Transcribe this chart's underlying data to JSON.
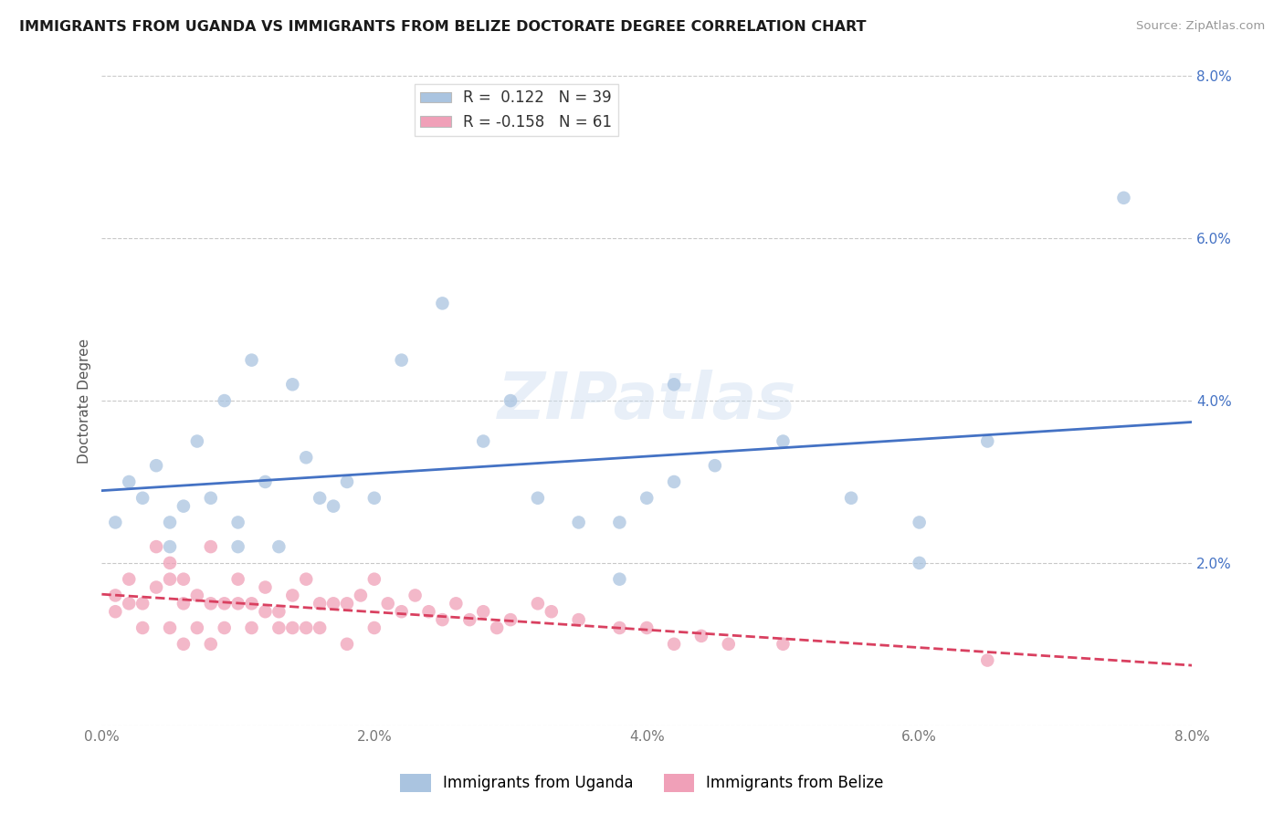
{
  "title": "IMMIGRANTS FROM UGANDA VS IMMIGRANTS FROM BELIZE DOCTORATE DEGREE CORRELATION CHART",
  "source": "Source: ZipAtlas.com",
  "ylabel_label": "Doctorate Degree",
  "legend_label1": "Immigrants from Uganda",
  "legend_label2": "Immigrants from Belize",
  "r1": 0.122,
  "n1": 39,
  "r2": -0.158,
  "n2": 61,
  "xlim": [
    0.0,
    0.08
  ],
  "ylim": [
    0.0,
    0.08
  ],
  "xtick_vals": [
    0.0,
    0.02,
    0.04,
    0.06,
    0.08
  ],
  "ytick_vals": [
    0.0,
    0.02,
    0.04,
    0.06,
    0.08
  ],
  "xtick_labels": [
    "0.0%",
    "2.0%",
    "4.0%",
    "6.0%",
    "8.0%"
  ],
  "ytick_labels": [
    "",
    "2.0%",
    "4.0%",
    "6.0%",
    "8.0%"
  ],
  "color_uganda": "#aac4e0",
  "color_belize": "#f0a0b8",
  "line_color_uganda": "#4472c4",
  "line_color_belize": "#d94060",
  "watermark_text": "ZIPatlas",
  "uganda_x": [
    0.001,
    0.002,
    0.003,
    0.004,
    0.005,
    0.005,
    0.006,
    0.007,
    0.008,
    0.009,
    0.01,
    0.01,
    0.011,
    0.012,
    0.013,
    0.014,
    0.015,
    0.016,
    0.017,
    0.018,
    0.02,
    0.022,
    0.025,
    0.028,
    0.03,
    0.032,
    0.035,
    0.038,
    0.04,
    0.042,
    0.045,
    0.05,
    0.055,
    0.06,
    0.065,
    0.038,
    0.042,
    0.06,
    0.075
  ],
  "uganda_y": [
    0.025,
    0.03,
    0.028,
    0.032,
    0.025,
    0.022,
    0.027,
    0.035,
    0.028,
    0.04,
    0.025,
    0.022,
    0.045,
    0.03,
    0.022,
    0.042,
    0.033,
    0.028,
    0.027,
    0.03,
    0.028,
    0.045,
    0.052,
    0.035,
    0.04,
    0.028,
    0.025,
    0.025,
    0.028,
    0.03,
    0.032,
    0.035,
    0.028,
    0.025,
    0.035,
    0.018,
    0.042,
    0.02,
    0.065
  ],
  "belize_x": [
    0.001,
    0.001,
    0.002,
    0.002,
    0.003,
    0.003,
    0.004,
    0.004,
    0.005,
    0.005,
    0.005,
    0.006,
    0.006,
    0.006,
    0.007,
    0.007,
    0.008,
    0.008,
    0.008,
    0.009,
    0.009,
    0.01,
    0.01,
    0.011,
    0.011,
    0.012,
    0.012,
    0.013,
    0.013,
    0.014,
    0.014,
    0.015,
    0.015,
    0.016,
    0.016,
    0.017,
    0.018,
    0.018,
    0.019,
    0.02,
    0.02,
    0.021,
    0.022,
    0.023,
    0.024,
    0.025,
    0.026,
    0.027,
    0.028,
    0.029,
    0.03,
    0.032,
    0.033,
    0.035,
    0.038,
    0.04,
    0.042,
    0.044,
    0.046,
    0.05,
    0.065
  ],
  "belize_y": [
    0.016,
    0.014,
    0.018,
    0.015,
    0.015,
    0.012,
    0.017,
    0.022,
    0.02,
    0.018,
    0.012,
    0.018,
    0.015,
    0.01,
    0.016,
    0.012,
    0.022,
    0.015,
    0.01,
    0.015,
    0.012,
    0.018,
    0.015,
    0.015,
    0.012,
    0.017,
    0.014,
    0.014,
    0.012,
    0.016,
    0.012,
    0.018,
    0.012,
    0.015,
    0.012,
    0.015,
    0.015,
    0.01,
    0.016,
    0.018,
    0.012,
    0.015,
    0.014,
    0.016,
    0.014,
    0.013,
    0.015,
    0.013,
    0.014,
    0.012,
    0.013,
    0.015,
    0.014,
    0.013,
    0.012,
    0.012,
    0.01,
    0.011,
    0.01,
    0.01,
    0.008
  ]
}
